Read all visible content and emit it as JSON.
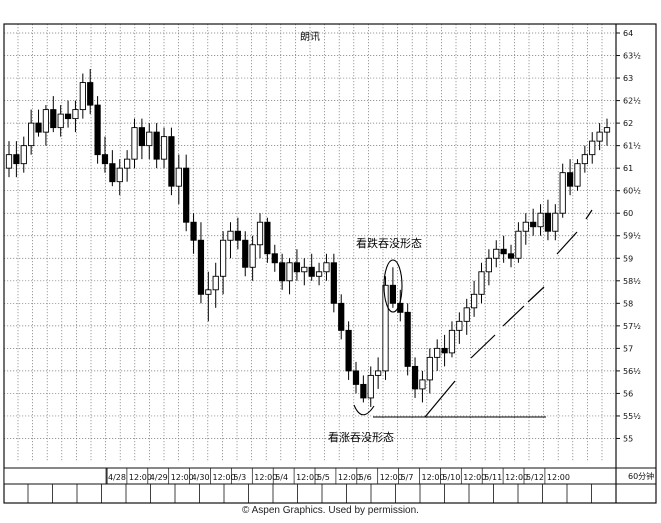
{
  "chart_data": {
    "type": "candlestick",
    "title": "朗讯",
    "xlabel": "",
    "ylabel": "",
    "ylim": [
      54.5,
      64.2
    ],
    "grid": true,
    "x_tick_labels": [
      "4/28",
      "12:00",
      "4/29",
      "12:00",
      "4/30",
      "12:00",
      "5/3",
      "12:00",
      "5/4",
      "12:00",
      "5/5",
      "12:00",
      "5/6",
      "12:00",
      "5/7",
      "12:00",
      "5/10",
      "12:00",
      "5/11",
      "12:00",
      "5/12",
      "12:00"
    ],
    "y_tick_labels": [
      {
        "value": 64,
        "label": "64"
      },
      {
        "value": 63.5,
        "label": "63½"
      },
      {
        "value": 63,
        "label": "63"
      },
      {
        "value": 62.5,
        "label": "62½"
      },
      {
        "value": 62,
        "label": "62"
      },
      {
        "value": 61.5,
        "label": "61½"
      },
      {
        "value": 61,
        "label": "61"
      },
      {
        "value": 60.5,
        "label": "60½"
      },
      {
        "value": 60,
        "label": "60"
      },
      {
        "value": 59.5,
        "label": "59½"
      },
      {
        "value": 59,
        "label": "59"
      },
      {
        "value": 58.5,
        "label": "58½"
      },
      {
        "value": 58,
        "label": "58"
      },
      {
        "value": 57.5,
        "label": "57½"
      },
      {
        "value": 57,
        "label": "57"
      },
      {
        "value": 56.5,
        "label": "56½"
      },
      {
        "value": 56,
        "label": "56"
      },
      {
        "value": 55.5,
        "label": "55½"
      },
      {
        "value": 55,
        "label": "55"
      }
    ],
    "interval_label": "60分钟",
    "annotations": [
      {
        "text": "看跌吞没形态",
        "near_value": 59.3
      },
      {
        "text": "看涨吞没形态",
        "near_value": 55.6
      }
    ],
    "candles": [
      [
        61.0,
        61.6,
        60.8,
        61.3
      ],
      [
        61.3,
        61.6,
        60.8,
        61.1
      ],
      [
        61.1,
        61.7,
        60.9,
        61.5
      ],
      [
        61.5,
        62.3,
        61.3,
        62.0
      ],
      [
        62.0,
        62.3,
        61.7,
        61.8
      ],
      [
        61.8,
        62.4,
        61.5,
        62.3
      ],
      [
        62.3,
        62.6,
        61.8,
        61.9
      ],
      [
        61.9,
        62.4,
        61.7,
        62.2
      ],
      [
        62.2,
        62.5,
        61.9,
        62.1
      ],
      [
        62.1,
        62.5,
        61.8,
        62.3
      ],
      [
        62.3,
        63.1,
        62.1,
        62.9
      ],
      [
        62.9,
        63.2,
        62.2,
        62.4
      ],
      [
        62.4,
        62.6,
        61.1,
        61.3
      ],
      [
        61.3,
        61.7,
        60.9,
        61.1
      ],
      [
        61.1,
        61.4,
        60.6,
        60.7
      ],
      [
        60.7,
        61.2,
        60.4,
        61.0
      ],
      [
        61.0,
        61.4,
        60.7,
        61.2
      ],
      [
        61.2,
        62.1,
        61.0,
        61.9
      ],
      [
        61.9,
        62.1,
        61.2,
        61.5
      ],
      [
        61.5,
        62.0,
        61.2,
        61.8
      ],
      [
        61.8,
        62.0,
        61.0,
        61.2
      ],
      [
        61.2,
        61.9,
        61.0,
        61.7
      ],
      [
        61.7,
        61.9,
        60.4,
        60.6
      ],
      [
        60.6,
        61.3,
        60.2,
        61.0
      ],
      [
        61.0,
        61.3,
        59.6,
        59.8
      ],
      [
        59.8,
        60.0,
        59.1,
        59.4
      ],
      [
        59.4,
        59.8,
        58.0,
        58.2
      ],
      [
        58.2,
        58.7,
        57.6,
        58.3
      ],
      [
        58.3,
        58.9,
        57.9,
        58.6
      ],
      [
        58.6,
        59.6,
        58.2,
        59.4
      ],
      [
        59.4,
        59.8,
        59.0,
        59.6
      ],
      [
        59.6,
        59.9,
        59.2,
        59.4
      ],
      [
        59.4,
        59.6,
        58.6,
        58.8
      ],
      [
        58.8,
        59.5,
        58.5,
        59.3
      ],
      [
        59.3,
        60.0,
        59.0,
        59.8
      ],
      [
        59.8,
        59.9,
        58.9,
        59.1
      ],
      [
        59.1,
        59.3,
        58.7,
        58.9
      ],
      [
        58.9,
        59.1,
        58.3,
        58.5
      ],
      [
        58.5,
        59.0,
        58.2,
        58.9
      ],
      [
        58.9,
        59.2,
        58.5,
        58.7
      ],
      [
        58.7,
        59.0,
        58.4,
        58.8
      ],
      [
        58.8,
        59.1,
        58.5,
        58.6
      ],
      [
        58.6,
        58.9,
        58.4,
        58.7
      ],
      [
        58.7,
        59.1,
        58.5,
        58.9
      ],
      [
        58.9,
        59.1,
        57.8,
        58.0
      ],
      [
        58.0,
        58.2,
        57.2,
        57.4
      ],
      [
        57.4,
        57.6,
        56.3,
        56.5
      ],
      [
        56.5,
        56.7,
        56.0,
        56.2
      ],
      [
        56.2,
        56.4,
        55.8,
        55.9
      ],
      [
        55.9,
        56.6,
        55.7,
        56.4
      ],
      [
        56.4,
        56.8,
        56.1,
        56.5
      ],
      [
        56.5,
        58.6,
        56.3,
        58.4
      ],
      [
        58.4,
        58.8,
        57.9,
        58.0
      ],
      [
        58.0,
        58.3,
        57.6,
        57.8
      ],
      [
        57.8,
        58.0,
        56.4,
        56.6
      ],
      [
        56.6,
        56.8,
        55.9,
        56.1
      ],
      [
        56.1,
        56.5,
        55.8,
        56.3
      ],
      [
        56.3,
        57.0,
        56.0,
        56.8
      ],
      [
        56.8,
        57.2,
        56.5,
        57.0
      ],
      [
        57.0,
        57.3,
        56.6,
        56.9
      ],
      [
        56.9,
        57.6,
        56.8,
        57.4
      ],
      [
        57.4,
        57.8,
        57.1,
        57.6
      ],
      [
        57.6,
        58.1,
        57.3,
        57.9
      ],
      [
        57.9,
        58.5,
        57.7,
        58.2
      ],
      [
        58.2,
        58.9,
        58.0,
        58.7
      ],
      [
        58.7,
        59.2,
        58.4,
        59.0
      ],
      [
        59.0,
        59.4,
        58.8,
        59.2
      ],
      [
        59.2,
        59.5,
        58.9,
        59.1
      ],
      [
        59.1,
        59.3,
        58.8,
        59.0
      ],
      [
        59.0,
        59.8,
        58.9,
        59.6
      ],
      [
        59.6,
        60.0,
        59.3,
        59.8
      ],
      [
        59.8,
        60.1,
        59.5,
        59.7
      ],
      [
        59.7,
        60.2,
        59.5,
        60.0
      ],
      [
        60.0,
        60.3,
        59.4,
        59.6
      ],
      [
        59.6,
        60.2,
        59.4,
        60.0
      ],
      [
        60.0,
        61.1,
        59.9,
        60.9
      ],
      [
        60.9,
        61.2,
        60.4,
        60.6
      ],
      [
        60.6,
        61.2,
        60.5,
        61.1
      ],
      [
        61.1,
        61.5,
        60.9,
        61.3
      ],
      [
        61.3,
        61.8,
        61.1,
        61.6
      ],
      [
        61.6,
        62.0,
        61.4,
        61.8
      ],
      [
        61.8,
        62.1,
        61.5,
        61.9
      ]
    ]
  }
}
